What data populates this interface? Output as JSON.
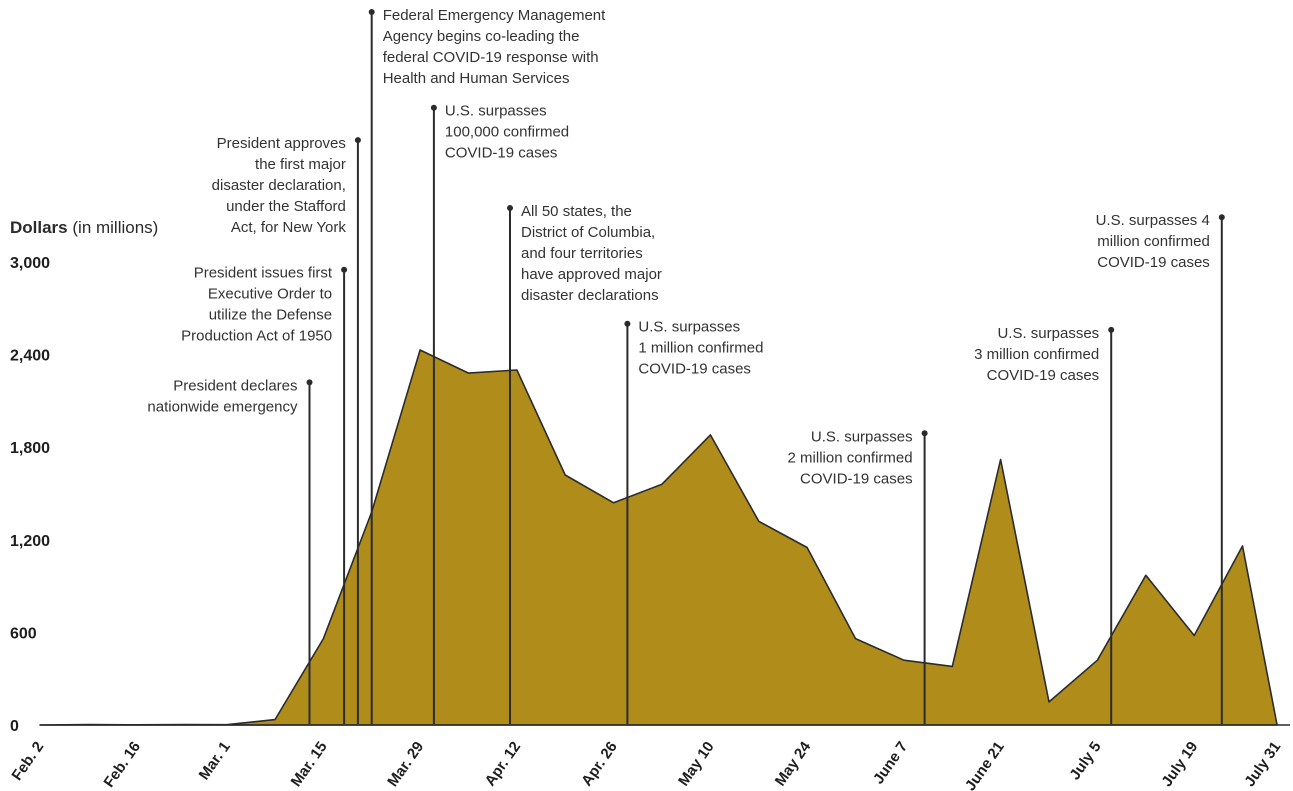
{
  "chart_data": {
    "type": "area",
    "title": "",
    "xlabel": "",
    "ylabel": "Dollars",
    "ylabel_unit": "(in millions)",
    "ylim": [
      0,
      3000
    ],
    "yticks": [
      0,
      600,
      1200,
      1800,
      2400,
      3000
    ],
    "ytick_labels": [
      "0",
      "600",
      "1,200",
      "1,800",
      "2,400",
      "3,000"
    ],
    "xtick_labels": [
      "Feb. 2",
      "Feb. 16",
      "Mar. 1",
      "Mar. 15",
      "Mar. 29",
      "Apr. 12",
      "Apr. 26",
      "May 10",
      "May 24",
      "June 7",
      "June 21",
      "July 5",
      "July 19",
      "July 31"
    ],
    "grid": false,
    "fill_color": "#b08d1a",
    "line_color": "#2b2b2b",
    "series": [
      {
        "x": [
          "Feb. 2",
          "Feb. 9",
          "Feb. 16",
          "Feb. 23",
          "Mar. 1",
          "Mar. 8",
          "Mar. 15",
          "Mar. 22",
          "Mar. 29",
          "Apr. 5",
          "Apr. 12",
          "Apr. 19",
          "Apr. 26",
          "May 3",
          "May 10",
          "May 17",
          "May 24",
          "May 31",
          "June 7",
          "June 14",
          "June 21",
          "June 28",
          "July 5",
          "July 12",
          "July 19",
          "July 26",
          "July 31"
        ],
        "values": [
          0,
          3,
          1,
          3,
          2,
          35,
          560,
          1380,
          2430,
          2280,
          2300,
          1620,
          1440,
          1560,
          1880,
          1320,
          1150,
          560,
          420,
          380,
          1720,
          150,
          420,
          970,
          580,
          1160,
          0
        ]
      }
    ],
    "annotations": [
      {
        "date": "Mar. 13",
        "value_at": 2220,
        "text": [
          "President declares",
          "nationwide emergency"
        ],
        "align": "left"
      },
      {
        "date": "Mar. 18",
        "value_at": 2950,
        "text": [
          "President issues first",
          "Executive Order to",
          "utilize the Defense",
          "Production Act of 1950"
        ],
        "align": "left"
      },
      {
        "date": "Mar. 20",
        "value_at": 3790,
        "text": [
          "President approves",
          "the first major",
          "disaster declaration,",
          "under the Stafford",
          "Act, for New York"
        ],
        "align": "left"
      },
      {
        "date": "Mar. 22",
        "value_at": 4620,
        "text": [
          "Federal Emergency Management",
          "Agency begins co-leading the",
          "federal COVID-19 response with",
          "Health and Human Services"
        ],
        "align": "right"
      },
      {
        "date": "Mar. 31",
        "value_at": 4000,
        "text": [
          "U.S. surpasses",
          "100,000 confirmed",
          "COVID-19 cases"
        ],
        "align": "right"
      },
      {
        "date": "Apr. 11",
        "value_at": 3350,
        "text": [
          "All 50 states, the",
          "District of Columbia,",
          "and four territories",
          "have approved major",
          "disaster declarations"
        ],
        "align": "right"
      },
      {
        "date": "Apr. 28",
        "value_at": 2600,
        "text": [
          "U.S. surpasses",
          "1 million confirmed",
          "COVID-19 cases"
        ],
        "align": "right"
      },
      {
        "date": "June 10",
        "value_at": 1890,
        "text": [
          "U.S. surpasses",
          "2 million confirmed",
          "COVID-19 cases"
        ],
        "align": "left"
      },
      {
        "date": "July 7",
        "value_at": 2560,
        "text": [
          "U.S. surpasses",
          "3 million confirmed",
          "COVID-19 cases"
        ],
        "align": "left"
      },
      {
        "date": "July 23",
        "value_at": 3290,
        "text": [
          "U.S. surpasses 4",
          "million confirmed",
          "COVID-19 cases"
        ],
        "align": "left"
      }
    ]
  }
}
